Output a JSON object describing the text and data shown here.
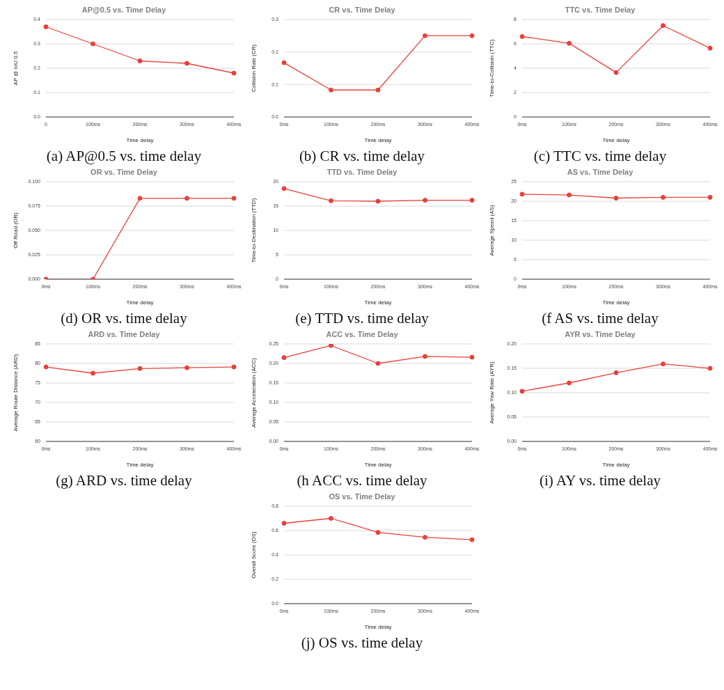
{
  "chart_data": [
    {
      "type": "line",
      "title": "AP@0.5 vs. Time Delay",
      "xlabel": "Time delay",
      "ylabel": "AP @ IoU 0.5",
      "categories": [
        "0",
        "100ms",
        "200ms",
        "300ms",
        "400ms"
      ],
      "series": [
        {
          "color": "#e8403a",
          "values": [
            0.37,
            0.3,
            0.23,
            0.22,
            0.18
          ]
        }
      ],
      "ylim": [
        0,
        0.4
      ],
      "yticks": [
        {
          "value": 0,
          "label": "0.0"
        },
        0.1,
        0.2,
        0.3,
        0.4
      ],
      "grid": "y",
      "marker": "circle",
      "annotations": [
        "(a) AP@0.5 vs. time delay"
      ]
    },
    {
      "type": "line",
      "title": "CR vs. Time Delay",
      "xlabel": "Time delay",
      "ylabel": "Collision Rate (CR)",
      "categories": [
        "0ms",
        "100ms",
        "200ms",
        "300ms",
        "400ms"
      ],
      "series": [
        {
          "color": "#e8403a",
          "values": [
            0.167,
            0.083,
            0.083,
            0.25,
            0.25
          ]
        }
      ],
      "ylim": [
        0,
        0.3
      ],
      "yticks": [
        {
          "value": 0,
          "label": "0.0"
        },
        0.1,
        0.2,
        0.3
      ],
      "grid": "y",
      "marker": "circle",
      "annotations": [
        "(b) CR vs. time delay"
      ]
    },
    {
      "type": "line",
      "title": "TTC vs. Time Delay",
      "xlabel": "Time delay",
      "ylabel": "Time-to-Collision (TTC)",
      "categories": [
        "0ms",
        "100ms",
        "200ms",
        "300ms",
        "400ms"
      ],
      "series": [
        {
          "color": "#e8403a",
          "values": [
            6.6,
            6.05,
            3.65,
            7.5,
            5.65
          ]
        }
      ],
      "ylim": [
        0,
        8
      ],
      "yticks": [
        0,
        2,
        4,
        6,
        8
      ],
      "grid": "y",
      "marker": "circle",
      "annotations": [
        "(c) TTC vs. time delay"
      ]
    },
    {
      "type": "line",
      "title": "OR vs. Time Delay",
      "xlabel": "Time delay",
      "ylabel": "Off Road (OR)",
      "categories": [
        "0ms",
        "100ms",
        "200ms",
        "300ms",
        "400ms"
      ],
      "series": [
        {
          "color": "#e8403a",
          "values": [
            0,
            0,
            0.083,
            0.083,
            0.083
          ]
        }
      ],
      "ylim": [
        0,
        0.1
      ],
      "yticks": [
        {
          "value": 0,
          "label": "0.000"
        },
        {
          "value": 0.025,
          "label": "0.025"
        },
        {
          "value": 0.05,
          "label": "0.050"
        },
        {
          "value": 0.075,
          "label": "0.075"
        },
        {
          "value": 0.1,
          "label": "0.100"
        }
      ],
      "grid": "y",
      "marker": "circle",
      "annotations": [
        "(d) OR vs. time delay"
      ]
    },
    {
      "type": "line",
      "title": "TTD vs. Time Delay",
      "xlabel": "Time delay",
      "ylabel": "Time-to-Destination (TTD)",
      "categories": [
        "0ms",
        "100ms",
        "200ms",
        "300ms",
        "400ms"
      ],
      "series": [
        {
          "color": "#e8403a",
          "values": [
            18.6,
            16.1,
            16.0,
            16.2,
            16.2
          ]
        }
      ],
      "ylim": [
        0,
        20
      ],
      "yticks": [
        0,
        5,
        10,
        15,
        20
      ],
      "grid": "y",
      "marker": "circle",
      "annotations": [
        "(e) TTD vs. time delay"
      ]
    },
    {
      "type": "line",
      "title": "AS vs. Time Delay",
      "xlabel": "Time delay",
      "ylabel": "Average Speed (AS)",
      "categories": [
        "0ms",
        "100ms",
        "200ms",
        "300ms",
        "400ms"
      ],
      "series": [
        {
          "color": "#e8403a",
          "values": [
            21.8,
            21.6,
            20.8,
            21.0,
            21.0
          ]
        }
      ],
      "ylim": [
        0,
        25
      ],
      "yticks": [
        0,
        5,
        10,
        15,
        20,
        25
      ],
      "grid": "y",
      "marker": "circle",
      "annotations": [
        "(f AS vs. time delay"
      ]
    },
    {
      "type": "line",
      "title": "ARD vs. Time Delay",
      "xlabel": "Time delay",
      "ylabel": "Average Route Distance (ARD)",
      "categories": [
        "0ms",
        "100ms",
        "200ms",
        "300ms",
        "400ms"
      ],
      "series": [
        {
          "color": "#e8403a",
          "values": [
            79.1,
            77.5,
            78.7,
            78.9,
            79.1
          ]
        }
      ],
      "ylim": [
        60,
        85
      ],
      "yticks": [
        60,
        65,
        70,
        75,
        80,
        85
      ],
      "grid": "y",
      "marker": "circle",
      "annotations": [
        "(g) ARD vs. time delay"
      ]
    },
    {
      "type": "line",
      "title": "ACC vs. Time Delay",
      "xlabel": "Time delay",
      "ylabel": "Average Acceleration (ACC)",
      "categories": [
        "0ms",
        "100ms",
        "200ms",
        "300ms",
        "400ms"
      ],
      "series": [
        {
          "color": "#e8403a",
          "values": [
            0.215,
            0.246,
            0.2,
            0.218,
            0.216
          ]
        }
      ],
      "ylim": [
        0,
        0.25
      ],
      "yticks": [
        {
          "value": 0,
          "label": "0.00"
        },
        0.05,
        {
          "value": 0.1,
          "label": "0.10"
        },
        0.15,
        {
          "value": 0.2,
          "label": "0.20"
        },
        0.25
      ],
      "grid": "y",
      "marker": "circle",
      "annotations": [
        "(h ACC vs. time delay"
      ]
    },
    {
      "type": "line",
      "title": "AYR vs. Time Delay",
      "xlabel": "Time delay",
      "ylabel": "Average Yaw Rate (AYR)",
      "categories": [
        "0ms",
        "100ms",
        "200ms",
        "300ms",
        "400ms"
      ],
      "series": [
        {
          "color": "#e8403a",
          "values": [
            0.103,
            0.12,
            0.141,
            0.159,
            0.15
          ]
        }
      ],
      "ylim": [
        0,
        0.2
      ],
      "yticks": [
        {
          "value": 0,
          "label": "0.00"
        },
        0.05,
        {
          "value": 0.1,
          "label": "0.10"
        },
        0.15,
        {
          "value": 0.2,
          "label": "0.20"
        }
      ],
      "grid": "y",
      "marker": "circle",
      "annotations": [
        "(i) AY vs. time delay"
      ]
    },
    {
      "type": "line",
      "title": "OS vs. Time Delay",
      "xlabel": "Time delay",
      "ylabel": "Overall Score (OS)",
      "categories": [
        "0ms",
        "100ms",
        "200ms",
        "300ms",
        "400ms"
      ],
      "series": [
        {
          "color": "#e8403a",
          "values": [
            0.66,
            0.7,
            0.585,
            0.545,
            0.525
          ]
        }
      ],
      "ylim": [
        0,
        0.8
      ],
      "yticks": [
        {
          "value": 0,
          "label": "0.0"
        },
        0.2,
        0.4,
        0.6,
        0.8
      ],
      "grid": "y",
      "marker": "circle",
      "annotations": [
        "(j) OS vs. time delay"
      ]
    }
  ]
}
